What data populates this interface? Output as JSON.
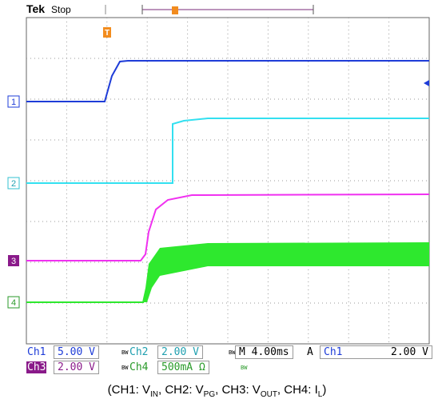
{
  "header": {
    "brand": "Tek",
    "status": "Stop"
  },
  "markers": {
    "trigger": "T",
    "ch1": "1",
    "ch2": "2",
    "ch3": "3",
    "ch4": "4"
  },
  "readouts": {
    "row1": [
      {
        "channel": "Ch1",
        "scale": "5.00 V"
      },
      {
        "channel": "Ch2",
        "scale": "2.00 V"
      }
    ],
    "timebase": "M 4.00ms",
    "trigger_mode": "A",
    "trigger_source": "Ch1",
    "trigger_level": "2.00 V",
    "row2": [
      {
        "channel": "Ch3",
        "scale": "2.00 V"
      },
      {
        "channel": "Ch4",
        "scale": "500mA Ω"
      }
    ],
    "bandwidth": "BW"
  },
  "caption": {
    "open": "(CH1: V",
    "s1": "IN",
    "t1": ", CH2: V",
    "s2": "PG",
    "t2": ", CH3: V",
    "s3": "OUT",
    "t3": ", CH4: I",
    "s4": "L",
    "close": ")"
  }
}
